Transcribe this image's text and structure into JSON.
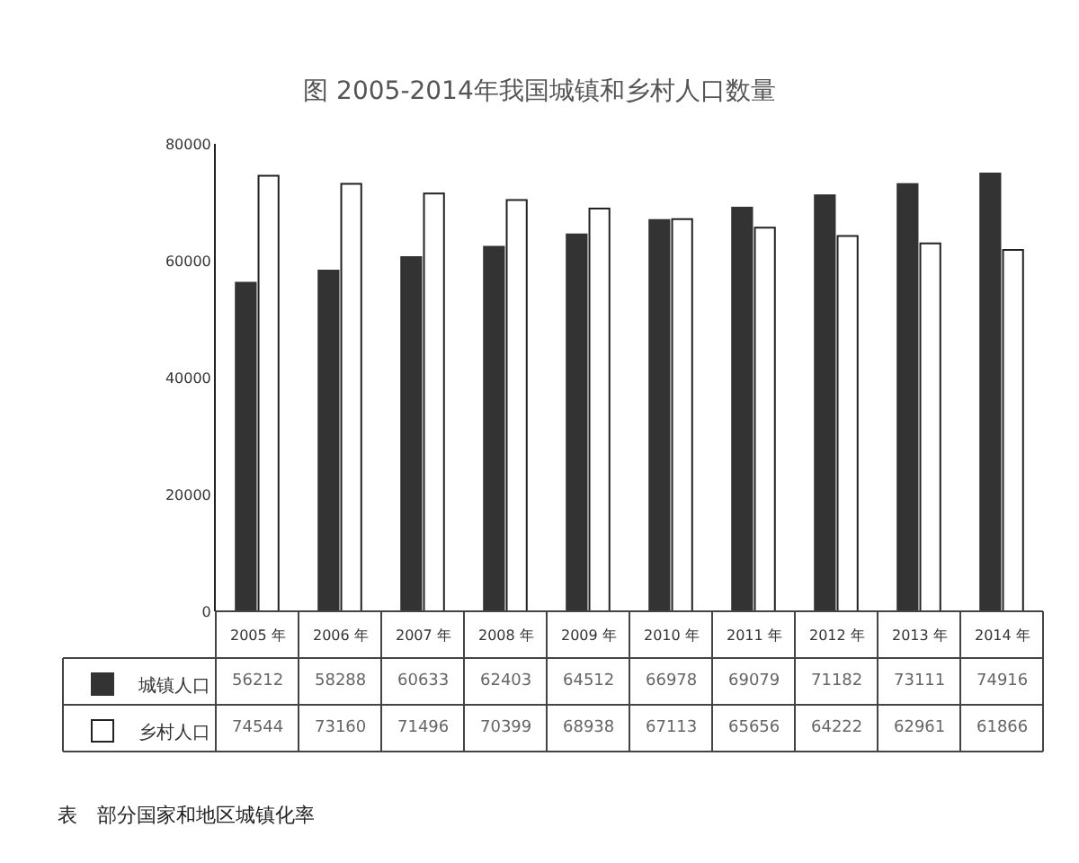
{
  "chart_data": {
    "type": "bar",
    "title": "图 2005-2014年我国城镇和乡村人口数量",
    "categories": [
      "2005 年",
      "2006 年",
      "2007 年",
      "2008 年",
      "2009 年",
      "2010 年",
      "2011 年",
      "2012 年",
      "2013 年",
      "2014 年"
    ],
    "series": [
      {
        "name": "城镇人口",
        "color": "#333333",
        "values": [
          56212,
          58288,
          60633,
          62403,
          64512,
          66978,
          69079,
          71182,
          73111,
          74916
        ]
      },
      {
        "name": "乡村人口",
        "color": "#ffffff",
        "values": [
          74544,
          73160,
          71496,
          70399,
          68938,
          67113,
          65656,
          64222,
          62961,
          61866
        ]
      }
    ],
    "ylim": [
      0,
      80000
    ],
    "yticks": [
      0,
      20000,
      40000,
      60000,
      80000
    ],
    "data_labels": true,
    "legend": "bottom left",
    "annotations": [
      "表　部分国家和地区城镇化率"
    ]
  }
}
